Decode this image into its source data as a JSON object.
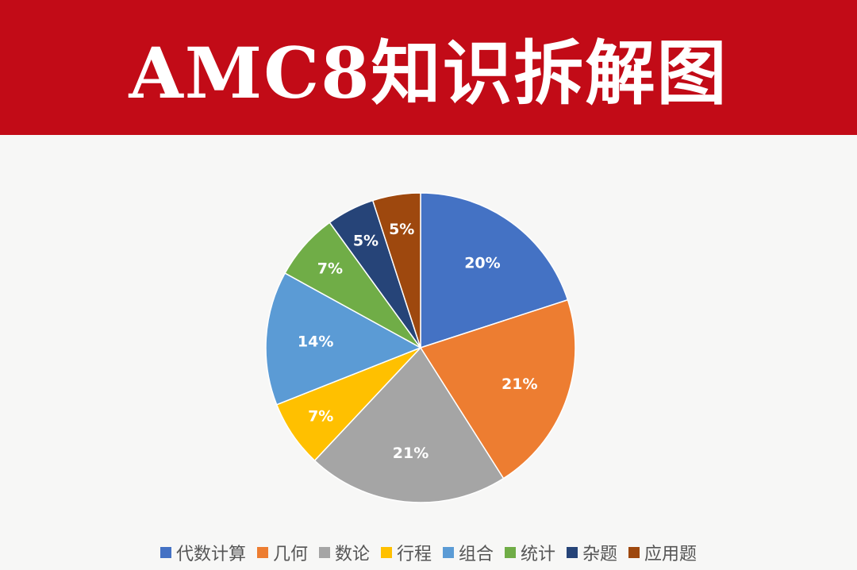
{
  "title": "AMC8知识拆解图",
  "chart_data": {
    "type": "pie",
    "start": "top",
    "direction": "clockwise",
    "legend_position": "bottom",
    "categories": [
      "代数计算",
      "几何",
      "数论",
      "行程",
      "组合",
      "统计",
      "杂题",
      "应用题"
    ],
    "values": [
      20,
      21,
      21,
      7,
      14,
      7,
      5,
      5
    ],
    "labels": [
      "20%",
      "21%",
      "21%",
      "7%",
      "14%",
      "7%",
      "5%",
      "5%"
    ],
    "colors": [
      "#4472c4",
      "#ed7d31",
      "#a5a5a5",
      "#ffc000",
      "#5b9bd5",
      "#70ad47",
      "#264478",
      "#9e480e"
    ]
  }
}
